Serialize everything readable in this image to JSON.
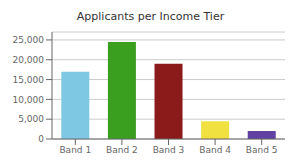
{
  "chart_data": {
    "type": "bar",
    "title": "Applicants per Income Tier",
    "categories": [
      "Band 1",
      "Band 2",
      "Band 3",
      "Band 4",
      "Band 5"
    ],
    "values": [
      17000,
      24500,
      19000,
      4500,
      2000
    ],
    "colors": [
      "#7EC8E3",
      "#3A9E1F",
      "#8B1A1A",
      "#F0E040",
      "#6040A0"
    ],
    "ylim": [
      0,
      27000
    ],
    "yticks": [
      0,
      {
        "value": 5000,
        "label": "5,000"
      },
      {
        "value": 10000,
        "label": "10,000"
      },
      {
        "value": 15000,
        "label": "15,000"
      },
      {
        "value": 20000,
        "label": "20,000"
      },
      {
        "value": 25000,
        "label": "25,000"
      }
    ],
    "grid": true
  }
}
